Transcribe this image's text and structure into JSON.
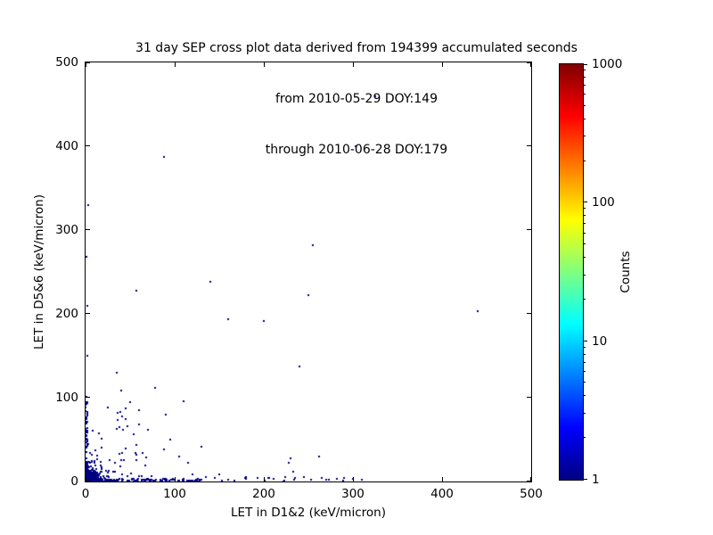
{
  "chart_data": {
    "type": "scatter",
    "title_lines": [
      "31 day SEP cross plot data derived from 194399 accumulated seconds",
      "from 2010-05-29 DOY:149",
      "through 2010-06-28 DOY:179"
    ],
    "xlabel": "LET in D1&2 (keV/micron)",
    "ylabel": "LET in D5&6 (keV/micron)",
    "xlim": [
      0,
      500
    ],
    "ylim": [
      0,
      500
    ],
    "xticks": [
      "0",
      "100",
      "200",
      "300",
      "400",
      "500"
    ],
    "yticks": [
      "0",
      "100",
      "200",
      "300",
      "400",
      "500"
    ],
    "grid": false,
    "point_color": "#000080",
    "colorbar": {
      "label": "Counts",
      "scale": "log",
      "min": 1,
      "max": 1000,
      "ticks": [
        "1",
        "10",
        "100",
        "1000"
      ],
      "colormap": "jet",
      "gradient_stops": [
        {
          "pos": 0.0,
          "color": "#000080"
        },
        {
          "pos": 0.125,
          "color": "#0000ff"
        },
        {
          "pos": 0.375,
          "color": "#00ffff"
        },
        {
          "pos": 0.625,
          "color": "#ffff00"
        },
        {
          "pos": 0.875,
          "color": "#ff0000"
        },
        {
          "pos": 1.0,
          "color": "#800000"
        }
      ]
    },
    "outlier_points": [
      [
        325,
        460
      ],
      [
        303,
        400
      ],
      [
        88,
        387
      ],
      [
        3,
        330
      ],
      [
        255,
        282
      ],
      [
        1,
        268
      ],
      [
        140,
        238
      ],
      [
        57,
        228
      ],
      [
        250,
        222
      ],
      [
        2,
        210
      ],
      [
        440,
        203
      ],
      [
        160,
        194
      ],
      [
        200,
        191
      ],
      [
        2,
        150
      ],
      [
        240,
        137
      ],
      [
        35,
        130
      ],
      [
        78,
        112
      ],
      [
        110,
        96
      ],
      [
        50,
        95
      ],
      [
        40,
        108
      ],
      [
        25,
        88
      ],
      [
        60,
        85
      ],
      [
        90,
        80
      ],
      [
        45,
        75
      ],
      [
        70,
        62
      ],
      [
        95,
        50
      ],
      [
        130,
        42
      ],
      [
        105,
        30
      ],
      [
        115,
        22
      ],
      [
        150,
        8
      ],
      [
        230,
        28
      ],
      [
        228,
        22
      ],
      [
        233,
        12
      ],
      [
        224,
        5
      ],
      [
        262,
        30
      ],
      [
        300,
        3
      ],
      [
        270,
        2
      ],
      [
        205,
        4
      ],
      [
        180,
        3
      ],
      [
        160,
        2
      ],
      [
        135,
        5
      ],
      [
        120,
        8
      ],
      [
        310,
        2
      ],
      [
        1,
        95
      ],
      [
        2,
        60
      ],
      [
        3,
        45
      ]
    ],
    "clusters": [
      {
        "name": "origin-core",
        "shape": "gaussian",
        "n": 350,
        "cx": 3,
        "cy": 3,
        "sx": 5,
        "sy": 5,
        "count": 1
      },
      {
        "name": "origin-halo",
        "shape": "gaussian",
        "n": 90,
        "cx": 4,
        "cy": 4,
        "sx": 13,
        "sy": 13,
        "count": 1
      },
      {
        "name": "x-axis-band",
        "shape": "band-x",
        "n": 230,
        "x_min": 0,
        "x_max": 130,
        "pow": 2.4,
        "y_min": 0,
        "y_max": 3,
        "count": 1
      },
      {
        "name": "x-axis-sparse",
        "shape": "band-x",
        "n": 22,
        "x_min": 120,
        "x_max": 310,
        "pow": 1,
        "y_min": 0,
        "y_max": 5,
        "count": 1
      },
      {
        "name": "y-axis-band",
        "shape": "band-y",
        "n": 110,
        "y_min": 0,
        "y_max": 105,
        "pow": 2.4,
        "x_min": 0,
        "x_max": 2.5,
        "count": 1
      },
      {
        "name": "lower-left-cone",
        "shape": "cone",
        "n": 95,
        "r_max": 105,
        "pow": 2.4,
        "count": 1
      }
    ]
  }
}
